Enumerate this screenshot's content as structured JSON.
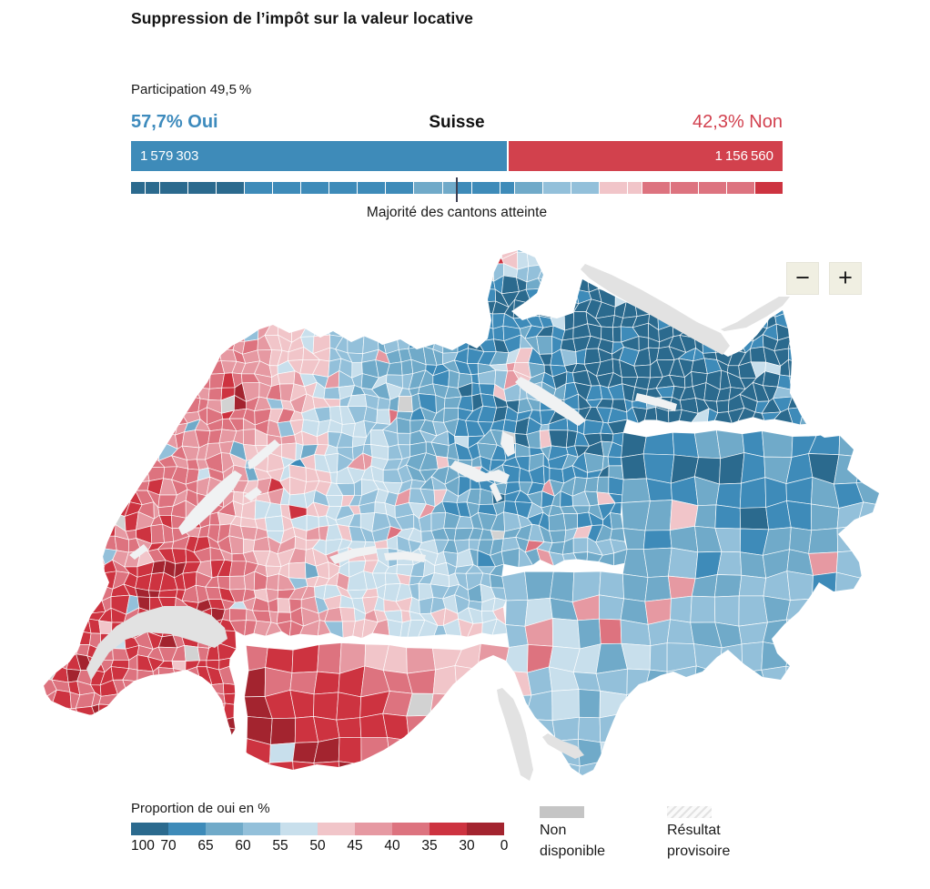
{
  "title": "Suppression de l’impôt sur la valeur locative",
  "participation": "Participation 49,5 %",
  "result": {
    "yes_label": "57,7% Oui",
    "region_label": "Suisse",
    "no_label": "42,3% Non",
    "yes_votes": "1 579 303",
    "no_votes": "1 156 560",
    "yes_pct": 57.7,
    "no_pct": 42.3,
    "yes_color": "#3e8bb9",
    "no_color": "#d2414d"
  },
  "cantons": {
    "label": "Majorité des cantons atteinte",
    "marker_position_pct": 50,
    "segments": [
      {
        "w": 0.5,
        "c": "#2b6a8e"
      },
      {
        "w": 0.5,
        "c": "#2b6a8e"
      },
      {
        "w": 1,
        "c": "#2b6a8e"
      },
      {
        "w": 1,
        "c": "#2b6a8e"
      },
      {
        "w": 1,
        "c": "#2b6a8e"
      },
      {
        "w": 1,
        "c": "#3e8bb9"
      },
      {
        "w": 1,
        "c": "#3e8bb9"
      },
      {
        "w": 1,
        "c": "#3e8bb9"
      },
      {
        "w": 1,
        "c": "#3e8bb9"
      },
      {
        "w": 1,
        "c": "#3e8bb9"
      },
      {
        "w": 1,
        "c": "#3e8bb9"
      },
      {
        "w": 1,
        "c": "#70aac9"
      },
      {
        "w": 0.5,
        "c": "#70aac9"
      },
      {
        "w": 0.5,
        "c": "#3e8bb9"
      },
      {
        "w": 1,
        "c": "#3e8bb9"
      },
      {
        "w": 0.5,
        "c": "#3e8bb9"
      },
      {
        "w": 1,
        "c": "#70aac9"
      },
      {
        "w": 1,
        "c": "#93c0da"
      },
      {
        "w": 1,
        "c": "#93c0da"
      },
      {
        "w": 1,
        "c": "#f1c5c9"
      },
      {
        "w": 0.5,
        "c": "#f1c5c9"
      },
      {
        "w": 1,
        "c": "#dd737f"
      },
      {
        "w": 1,
        "c": "#dd737f"
      },
      {
        "w": 1,
        "c": "#dd737f"
      },
      {
        "w": 1,
        "c": "#dd737f"
      },
      {
        "w": 1,
        "c": "#cd3340"
      }
    ]
  },
  "map": {
    "zoom_out_label": "−",
    "zoom_in_label": "+",
    "lake_color": "#e2e2e2",
    "small_lake_color": "#f0f2f3",
    "not_available_color": "#d2d2d2"
  },
  "legend": {
    "label": "Proportion de oui en %",
    "colors": [
      "#2b6a8e",
      "#3e8bb9",
      "#70aac9",
      "#93c0da",
      "#c8dfec",
      "#f1c5c9",
      "#e699a2",
      "#dd737f",
      "#cd3340",
      "#a3242f"
    ],
    "ticks": [
      "100",
      "70",
      "65",
      "60",
      "55",
      "50",
      "45",
      "40",
      "35",
      "30",
      "0"
    ],
    "not_available": "Non disponible",
    "provisional": "Résultat provisoire"
  },
  "chart_data": {
    "type": "choropleth",
    "title": "Suppression de l’impôt sur la valeur locative",
    "national": {
      "oui_pct": 57.7,
      "non_pct": 42.3,
      "oui_votes": 1579303,
      "non_votes": 1156560,
      "participation_pct": 49.5
    },
    "legend_bins_oui_pct": [
      100,
      70,
      65,
      60,
      55,
      50,
      45,
      40,
      35,
      30,
      0
    ],
    "canton_majority_reached": true,
    "canton_weights_total": 23,
    "majority_marker_weight": 11.5
  }
}
